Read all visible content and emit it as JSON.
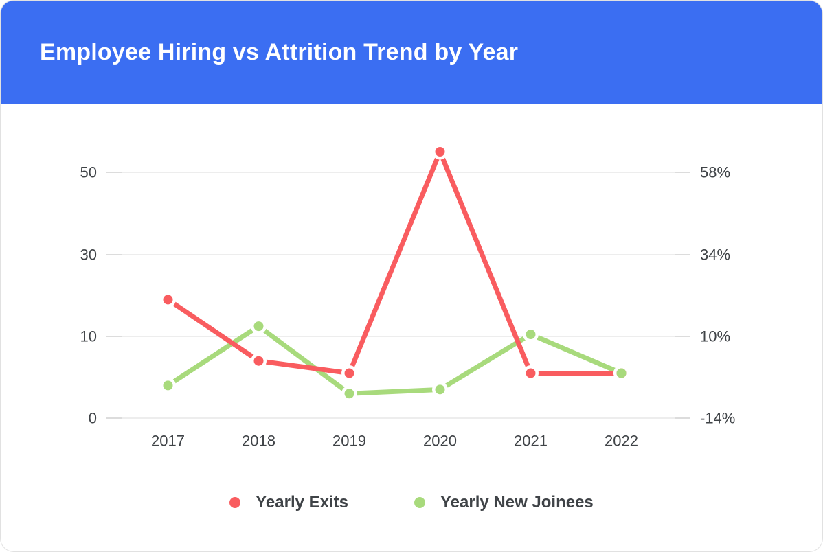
{
  "header": {
    "title": "Employee Hiring vs Attrition Trend by Year",
    "background_color": "#3b6ef2",
    "text_color": "#ffffff"
  },
  "legend": {
    "items": [
      {
        "label": "Yearly Exits",
        "color": "#f95c5f"
      },
      {
        "label": "Yearly New Joinees",
        "color": "#a8da7c"
      }
    ]
  },
  "chart_data": {
    "type": "line",
    "title": "Employee Hiring vs Attrition Trend by Year",
    "categories": [
      "2017",
      "2018",
      "2019",
      "2020",
      "2021",
      "2022"
    ],
    "series": [
      {
        "name": "Yearly Exits",
        "color": "#f95c5f",
        "values": [
          19,
          7,
          5.5,
          55,
          5.5,
          5.5
        ]
      },
      {
        "name": "Yearly New Joinees",
        "color": "#a8da7c",
        "values": [
          4,
          12.5,
          3,
          3.5,
          10.5,
          5.5
        ]
      }
    ],
    "left_axis": {
      "ticks": [
        0,
        10,
        30,
        50
      ],
      "labels": [
        "0",
        "10",
        "30",
        "50"
      ]
    },
    "right_axis": {
      "labels": [
        "-14%",
        "10%",
        "34%",
        "58%"
      ]
    },
    "xlabel": "",
    "ylabel": "",
    "grid": true,
    "legend_position": "bottom",
    "marker": "circle"
  }
}
